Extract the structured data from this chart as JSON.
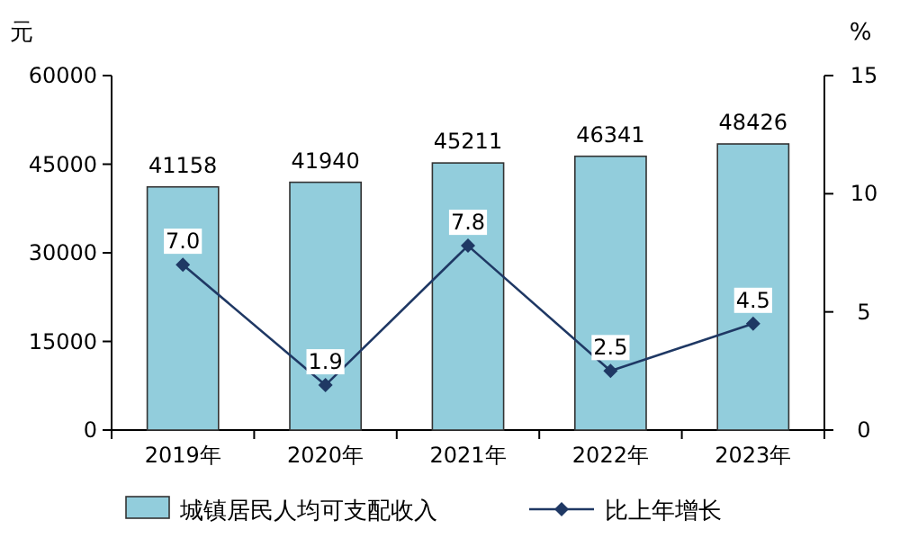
{
  "chart_data": {
    "type": "bar",
    "ylabel": "元",
    "y2label": "%",
    "categories": [
      "2019年",
      "2020年",
      "2021年",
      "2022年",
      "2023年"
    ],
    "series": [
      {
        "name": "城镇居民人均可支配收入",
        "color": "#92cddc",
        "values": [
          41158,
          41940,
          45211,
          46341,
          48426
        ],
        "value_labels": [
          "41158",
          "41940",
          "45211",
          "46341",
          "48426"
        ]
      },
      {
        "name": "比上年增长",
        "type": "line",
        "axis": "y2",
        "color": "#1f3864",
        "marker": "diamond",
        "values": [
          7.0,
          1.9,
          7.8,
          2.5,
          4.5
        ],
        "value_labels": [
          "7.0",
          "1.9",
          "7.8",
          "2.5",
          "4.5"
        ]
      }
    ],
    "ylim": [
      0,
      60000
    ],
    "yticks": [
      0,
      15000,
      30000,
      45000,
      60000
    ],
    "y2lim": [
      0,
      15
    ],
    "y2ticks": [
      0,
      5,
      10,
      15
    ],
    "legend": "bottom",
    "grid": false
  }
}
